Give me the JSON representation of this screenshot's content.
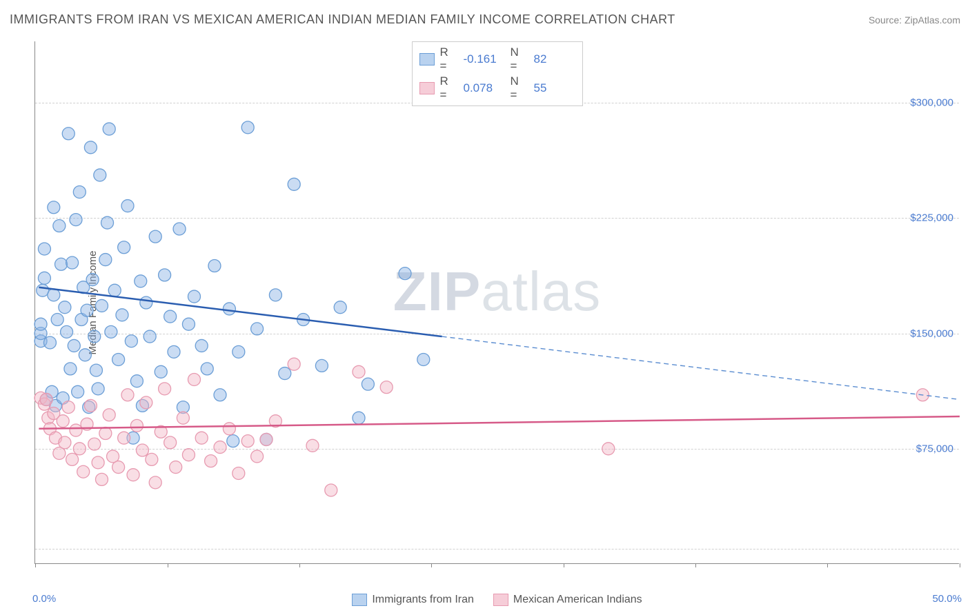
{
  "title": "IMMIGRANTS FROM IRAN VS MEXICAN AMERICAN INDIAN MEDIAN FAMILY INCOME CORRELATION CHART",
  "source_prefix": "Source: ",
  "source_name": "ZipAtlas.com",
  "watermark_bold": "ZIP",
  "watermark_light": "atlas",
  "chart": {
    "type": "scatter",
    "y_axis_label": "Median Family Income",
    "xlim": [
      0,
      50
    ],
    "ylim": [
      0,
      340000
    ],
    "x_ticks": [
      0,
      50
    ],
    "x_tick_labels": [
      "0.0%",
      "50.0%"
    ],
    "x_minor_ticks": [
      0,
      7.15,
      14.3,
      21.4,
      28.6,
      35.7,
      42.85,
      50
    ],
    "y_gridlines": [
      10000,
      75000,
      150000,
      225000,
      300000
    ],
    "y_tick_labels": [
      "",
      "$75,000",
      "$150,000",
      "$225,000",
      "$300,000"
    ],
    "grid_color": "#d0d0d0",
    "axis_color": "#888888",
    "tick_label_color": "#4a7bd0",
    "background_color": "#ffffff",
    "marker_radius": 9,
    "marker_stroke_width": 1.3,
    "trend_line_width": 2.5,
    "series": [
      {
        "name": "Immigrants from Iran",
        "fill": "rgba(137,178,228,0.45)",
        "stroke": "#6b9ed6",
        "swatch_fill": "#b9d2ef",
        "swatch_stroke": "#6b9ed6",
        "R": "-0.161",
        "N": "82",
        "trend": {
          "x1": 0.2,
          "y1": 180000,
          "x2": 22,
          "y2": 148000,
          "color": "#2a5db0"
        },
        "trend_ext": {
          "x1": 22,
          "y1": 148000,
          "x2": 50,
          "y2": 107000,
          "color": "#5a8cd0"
        },
        "points": [
          [
            0.3,
            145000
          ],
          [
            0.3,
            150000
          ],
          [
            0.3,
            156000
          ],
          [
            0.4,
            178000
          ],
          [
            0.5,
            205000
          ],
          [
            0.5,
            186000
          ],
          [
            0.6,
            107000
          ],
          [
            0.8,
            144000
          ],
          [
            0.9,
            112000
          ],
          [
            1.0,
            232000
          ],
          [
            1.0,
            175000
          ],
          [
            1.1,
            103000
          ],
          [
            1.2,
            159000
          ],
          [
            1.3,
            220000
          ],
          [
            1.4,
            195000
          ],
          [
            1.5,
            108000
          ],
          [
            1.6,
            167000
          ],
          [
            1.7,
            151000
          ],
          [
            1.8,
            280000
          ],
          [
            1.9,
            127000
          ],
          [
            2.0,
            196000
          ],
          [
            2.1,
            142000
          ],
          [
            2.2,
            224000
          ],
          [
            2.3,
            112000
          ],
          [
            2.4,
            242000
          ],
          [
            2.5,
            159000
          ],
          [
            2.6,
            180000
          ],
          [
            2.7,
            136000
          ],
          [
            2.8,
            165000
          ],
          [
            2.9,
            102000
          ],
          [
            3.0,
            271000
          ],
          [
            3.1,
            185000
          ],
          [
            3.2,
            148000
          ],
          [
            3.3,
            126000
          ],
          [
            3.4,
            114000
          ],
          [
            3.5,
            253000
          ],
          [
            3.6,
            168000
          ],
          [
            3.8,
            198000
          ],
          [
            3.9,
            222000
          ],
          [
            4.0,
            283000
          ],
          [
            4.1,
            151000
          ],
          [
            4.3,
            178000
          ],
          [
            4.5,
            133000
          ],
          [
            4.7,
            162000
          ],
          [
            4.8,
            206000
          ],
          [
            5.0,
            233000
          ],
          [
            5.2,
            145000
          ],
          [
            5.3,
            82000
          ],
          [
            5.5,
            119000
          ],
          [
            5.7,
            184000
          ],
          [
            5.8,
            103000
          ],
          [
            6.0,
            170000
          ],
          [
            6.2,
            148000
          ],
          [
            6.5,
            213000
          ],
          [
            6.8,
            125000
          ],
          [
            7.0,
            188000
          ],
          [
            7.3,
            161000
          ],
          [
            7.5,
            138000
          ],
          [
            7.8,
            218000
          ],
          [
            8.0,
            102000
          ],
          [
            8.3,
            156000
          ],
          [
            8.6,
            174000
          ],
          [
            9.0,
            142000
          ],
          [
            9.3,
            127000
          ],
          [
            9.7,
            194000
          ],
          [
            10.0,
            110000
          ],
          [
            10.5,
            166000
          ],
          [
            10.7,
            80000
          ],
          [
            11.0,
            138000
          ],
          [
            11.5,
            284000
          ],
          [
            12.0,
            153000
          ],
          [
            12.5,
            81000
          ],
          [
            13.0,
            175000
          ],
          [
            13.5,
            124000
          ],
          [
            14.0,
            247000
          ],
          [
            14.5,
            159000
          ],
          [
            15.5,
            129000
          ],
          [
            16.5,
            167000
          ],
          [
            17.5,
            95000
          ],
          [
            18.0,
            117000
          ],
          [
            20.0,
            189000
          ],
          [
            21.0,
            133000
          ]
        ]
      },
      {
        "name": "Mexican American Indians",
        "fill": "rgba(242,182,198,0.45)",
        "stroke": "#e79ab0",
        "swatch_fill": "#f6cdd8",
        "swatch_stroke": "#e79ab0",
        "R": "0.078",
        "N": "55",
        "trend": {
          "x1": 0.2,
          "y1": 88000,
          "x2": 50,
          "y2": 96000,
          "color": "#d65a88"
        },
        "points": [
          [
            0.3,
            108000
          ],
          [
            0.5,
            104000
          ],
          [
            0.6,
            107000
          ],
          [
            0.7,
            95000
          ],
          [
            0.8,
            88000
          ],
          [
            1.0,
            98000
          ],
          [
            1.1,
            82000
          ],
          [
            1.3,
            72000
          ],
          [
            1.5,
            93000
          ],
          [
            1.6,
            79000
          ],
          [
            1.8,
            102000
          ],
          [
            2.0,
            68000
          ],
          [
            2.2,
            87000
          ],
          [
            2.4,
            75000
          ],
          [
            2.6,
            60000
          ],
          [
            2.8,
            91000
          ],
          [
            3.0,
            103000
          ],
          [
            3.2,
            78000
          ],
          [
            3.4,
            66000
          ],
          [
            3.6,
            55000
          ],
          [
            3.8,
            85000
          ],
          [
            4.0,
            97000
          ],
          [
            4.2,
            70000
          ],
          [
            4.5,
            63000
          ],
          [
            4.8,
            82000
          ],
          [
            5.0,
            110000
          ],
          [
            5.3,
            58000
          ],
          [
            5.5,
            90000
          ],
          [
            5.8,
            74000
          ],
          [
            6.0,
            105000
          ],
          [
            6.3,
            68000
          ],
          [
            6.5,
            53000
          ],
          [
            6.8,
            86000
          ],
          [
            7.0,
            114000
          ],
          [
            7.3,
            79000
          ],
          [
            7.6,
            63000
          ],
          [
            8.0,
            95000
          ],
          [
            8.3,
            71000
          ],
          [
            8.6,
            120000
          ],
          [
            9.0,
            82000
          ],
          [
            9.5,
            67000
          ],
          [
            10.0,
            76000
          ],
          [
            10.5,
            88000
          ],
          [
            11.0,
            59000
          ],
          [
            11.5,
            80000
          ],
          [
            12.0,
            70000
          ],
          [
            12.5,
            81000
          ],
          [
            13.0,
            93000
          ],
          [
            14.0,
            130000
          ],
          [
            15.0,
            77000
          ],
          [
            16.0,
            48000
          ],
          [
            17.5,
            125000
          ],
          [
            19.0,
            115000
          ],
          [
            31.0,
            75000
          ],
          [
            48.0,
            110000
          ]
        ]
      }
    ],
    "legend_top": {
      "R_label": "R =",
      "N_label": "N ="
    },
    "legend_bottom_labels": [
      "Immigrants from Iran",
      "Mexican American Indians"
    ]
  }
}
